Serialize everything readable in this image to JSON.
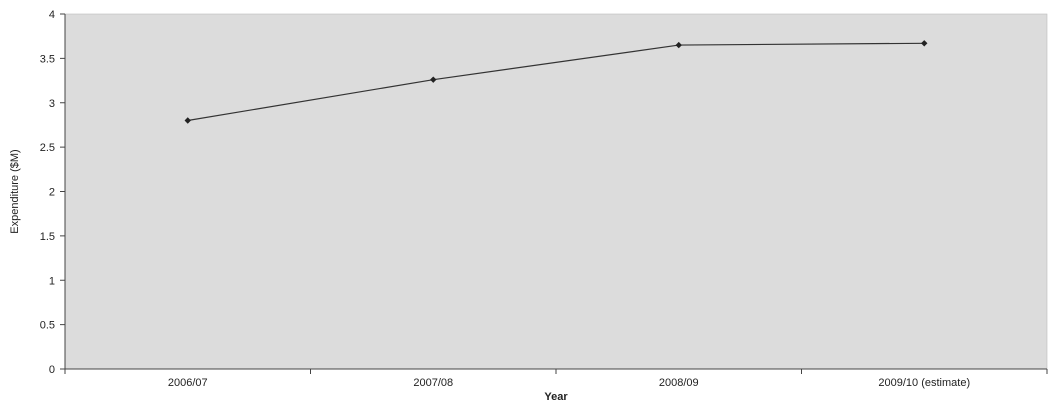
{
  "chart_data": {
    "type": "line",
    "title": "",
    "xlabel": "Year",
    "ylabel": "Expenditure ($M)",
    "categories": [
      "2006/07",
      "2007/08",
      "2008/09",
      "2009/10 (estimate)"
    ],
    "series": [
      {
        "values": [
          2.8,
          3.26,
          3.65,
          3.67
        ]
      }
    ],
    "ylim": [
      0,
      4
    ],
    "yticks": [
      "0",
      "0.5",
      "1",
      "1.5",
      "2",
      "2.5",
      "3",
      "3.5",
      "4"
    ],
    "grid": false,
    "legend": "none",
    "colors": {
      "plot_background": "#dcdcdc",
      "line": "#333333",
      "marker": "#222222",
      "axis": "#444444"
    }
  }
}
